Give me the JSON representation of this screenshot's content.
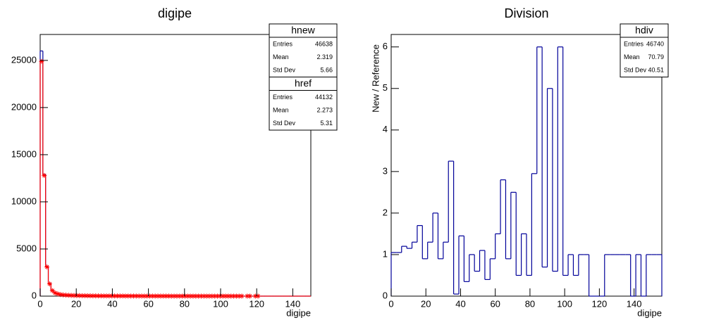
{
  "chart_data": [
    {
      "type": "histogram",
      "title": "digipe",
      "x_label": "digipe",
      "bins": [
        0,
        1.5,
        3,
        4.5,
        6,
        7.5,
        9,
        10.5,
        12,
        13.5,
        15,
        16.5,
        18,
        19.5,
        21,
        22.5,
        24,
        25.5,
        27,
        28.5,
        30,
        31.5,
        33,
        34.5,
        36,
        37.5,
        39,
        40.5,
        42,
        43.5,
        45,
        46.5,
        48,
        49.5,
        51,
        52.5,
        54,
        55.5,
        57,
        58.5,
        60,
        61.5,
        63,
        64.5,
        66,
        67.5,
        69,
        70.5,
        72,
        73.5,
        75,
        76.5,
        78,
        79.5,
        81,
        82.5,
        84,
        85.5,
        87,
        88.5,
        90,
        91.5,
        93,
        94.5,
        96,
        97.5,
        99,
        100.5,
        102,
        103.5,
        105,
        106.5,
        108,
        109.5,
        111,
        112.5,
        114,
        115.5,
        117,
        118.5,
        120,
        121.5,
        123,
        124.5,
        126,
        127.5,
        129,
        130.5,
        132,
        133.5,
        135,
        136.5,
        138,
        139.5,
        141,
        142.5,
        144,
        145.5,
        147,
        148.5,
        150
      ],
      "series": [
        {
          "name": "hnew",
          "color": "#000099",
          "values": [
            26000,
            12900,
            3150,
            1350,
            620,
            360,
            250,
            180,
            140,
            115,
            95,
            80,
            70,
            60,
            55,
            50,
            45,
            40,
            37,
            34,
            31,
            29,
            27,
            25,
            23,
            21,
            20,
            18,
            17,
            16,
            15,
            14,
            13,
            12,
            11,
            10,
            10,
            9,
            9,
            8,
            8,
            7,
            7,
            6,
            6,
            6,
            5,
            5,
            5,
            4,
            4,
            4,
            4,
            3,
            3,
            3,
            3,
            3,
            2,
            2,
            2,
            2,
            2,
            2,
            2,
            1,
            1,
            1,
            1,
            1,
            1,
            1,
            1,
            1,
            0,
            1,
            0,
            0,
            1,
            0,
            1,
            0,
            0,
            0,
            0,
            0,
            0,
            0,
            0,
            0,
            0,
            0,
            0,
            0,
            0,
            0,
            0,
            0,
            0,
            0
          ]
        },
        {
          "name": "href",
          "color": "#ff0000",
          "marker": "star",
          "values": [
            24900,
            12800,
            3100,
            1300,
            590,
            340,
            240,
            170,
            130,
            110,
            90,
            76,
            66,
            57,
            52,
            47,
            42,
            38,
            35,
            32,
            29,
            27,
            25,
            23,
            21,
            20,
            19,
            17,
            16,
            15,
            14,
            13,
            12,
            11,
            10,
            10,
            9,
            9,
            8,
            8,
            7,
            7,
            6,
            6,
            6,
            5,
            5,
            5,
            4,
            4,
            4,
            4,
            3,
            3,
            3,
            3,
            3,
            2,
            2,
            2,
            2,
            2,
            2,
            2,
            1,
            1,
            1,
            1,
            1,
            1,
            1,
            1,
            1,
            1,
            1,
            0,
            1,
            1,
            0,
            1,
            1,
            0,
            0,
            0,
            0,
            0,
            0,
            0,
            0,
            0,
            0,
            0,
            0,
            0,
            0,
            0,
            0,
            0,
            0,
            0
          ]
        }
      ],
      "xlim": [
        0,
        150
      ],
      "xticks": [
        0,
        20,
        40,
        60,
        80,
        100,
        120,
        140
      ],
      "ylim": [
        0,
        27750
      ],
      "yticks": [
        0,
        5000,
        10000,
        15000,
        20000,
        25000
      ],
      "stats": [
        {
          "title": "hnew",
          "rows": [
            [
              "Entries",
              "46638"
            ],
            [
              "Mean",
              "2.319"
            ],
            [
              "Std Dev",
              "5.66"
            ]
          ]
        },
        {
          "title": "href",
          "rows": [
            [
              "Entries",
              "44132"
            ],
            [
              "Mean",
              "2.273"
            ],
            [
              "Std Dev",
              "5.31"
            ]
          ]
        }
      ]
    },
    {
      "type": "histogram",
      "title": "Division",
      "x_label": "digipe",
      "y_label": "New / Reference",
      "bins": [
        0,
        3,
        6,
        9,
        12,
        15,
        18,
        21,
        24,
        27,
        30,
        33,
        36,
        39,
        42,
        45,
        48,
        51,
        54,
        57,
        60,
        63,
        66,
        69,
        72,
        75,
        78,
        81,
        84,
        87,
        90,
        93,
        96,
        99,
        102,
        105,
        108,
        111,
        114,
        117,
        120,
        123,
        126,
        129,
        132,
        135,
        138,
        141,
        144,
        147,
        150,
        153,
        156
      ],
      "series": [
        {
          "name": "hdiv",
          "color": "#000099",
          "values": [
            1.05,
            1.05,
            1.2,
            1.15,
            1.3,
            1.7,
            0.9,
            1.3,
            2.0,
            0.9,
            1.3,
            3.25,
            0.05,
            1.45,
            0.35,
            1.0,
            0.6,
            1.1,
            0.4,
            0.9,
            1.5,
            2.8,
            0.9,
            2.5,
            0.5,
            1.5,
            0.5,
            2.95,
            6.0,
            0.7,
            5.0,
            0.6,
            6.0,
            0.5,
            1.0,
            0.5,
            1.0,
            1.0,
            0,
            0,
            0,
            1,
            1,
            1,
            1,
            1,
            0,
            1,
            0,
            1,
            1,
            1
          ]
        }
      ],
      "xlim": [
        0,
        156
      ],
      "xticks": [
        0,
        20,
        40,
        60,
        80,
        100,
        120,
        140
      ],
      "ylim": [
        0,
        6.3
      ],
      "yticks": [
        0,
        1,
        2,
        3,
        4,
        5,
        6
      ],
      "stats": [
        {
          "title": "hdiv",
          "rows": [
            [
              "Entries",
              "46740"
            ],
            [
              "Mean",
              "70.79"
            ],
            [
              "Std Dev",
              "40.51"
            ]
          ]
        }
      ]
    }
  ]
}
